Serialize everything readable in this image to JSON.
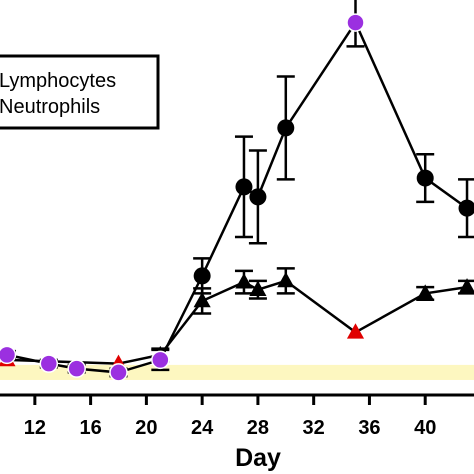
{
  "chart_data": {
    "type": "line",
    "xlabel": "Day",
    "ylabel": "",
    "x_ticks": [
      12,
      16,
      20,
      24,
      28,
      32,
      36,
      40
    ],
    "xlim": [
      9.5,
      43.5
    ],
    "ylim": [
      -1.5,
      30
    ],
    "legend": {
      "placement": "top-left",
      "entries": [
        {
          "label": "Lymphocytes",
          "marker": "circle"
        },
        {
          "label": "Neutrophils",
          "marker": "triangle"
        }
      ]
    },
    "reference_band": {
      "y_from": -0.3,
      "y_to": 0.9,
      "color": "#fdf7c0"
    },
    "highlight_colors": {
      "circle": "#9b30e0",
      "triangle": "#e00000"
    },
    "series": [
      {
        "name": "Lymphocytes",
        "marker": "circle",
        "color": "#000000",
        "points": [
          {
            "x": 10,
            "y": 1.7,
            "err": 0.3,
            "highlight": true
          },
          {
            "x": 13,
            "y": 1.0,
            "err": 0.3,
            "highlight": true
          },
          {
            "x": 15,
            "y": 0.6,
            "err": 0.3,
            "highlight": true
          },
          {
            "x": 18,
            "y": 0.3,
            "err": 0.3,
            "highlight": true
          },
          {
            "x": 21,
            "y": 1.3,
            "err": 0.8,
            "highlight": true
          },
          {
            "x": 24,
            "y": 8.0,
            "err": 1.4,
            "highlight": false
          },
          {
            "x": 27,
            "y": 15.1,
            "err": 4.0,
            "highlight": false
          },
          {
            "x": 28,
            "y": 14.3,
            "err": 3.7,
            "highlight": false
          },
          {
            "x": 30,
            "y": 19.8,
            "err": 4.1,
            "highlight": false
          },
          {
            "x": 35,
            "y": 28.2,
            "err": 1.9,
            "highlight": true
          },
          {
            "x": 40,
            "y": 15.8,
            "err": 1.9,
            "highlight": false
          },
          {
            "x": 43,
            "y": 13.4,
            "err": 2.3,
            "highlight": false
          }
        ]
      },
      {
        "name": "Neutrophils",
        "marker": "triangle",
        "color": "#000000",
        "points": [
          {
            "x": 10,
            "y": 1.3,
            "err": 0.0,
            "highlight": true
          },
          {
            "x": 18,
            "y": 1.0,
            "err": 0.0,
            "highlight": true
          },
          {
            "x": 21,
            "y": 1.7,
            "err": 0.5,
            "highlight": false
          },
          {
            "x": 24,
            "y": 6.0,
            "err": 1.0,
            "highlight": false
          },
          {
            "x": 27,
            "y": 7.5,
            "err": 0.9,
            "highlight": false
          },
          {
            "x": 28,
            "y": 6.9,
            "err": 0.7,
            "highlight": false
          },
          {
            "x": 30,
            "y": 7.6,
            "err": 1.0,
            "highlight": false
          },
          {
            "x": 35,
            "y": 3.5,
            "err": 0.0,
            "highlight": true
          },
          {
            "x": 40,
            "y": 6.6,
            "err": 0.5,
            "highlight": false
          },
          {
            "x": 43,
            "y": 7.1,
            "err": 0.5,
            "highlight": false
          }
        ]
      }
    ]
  }
}
